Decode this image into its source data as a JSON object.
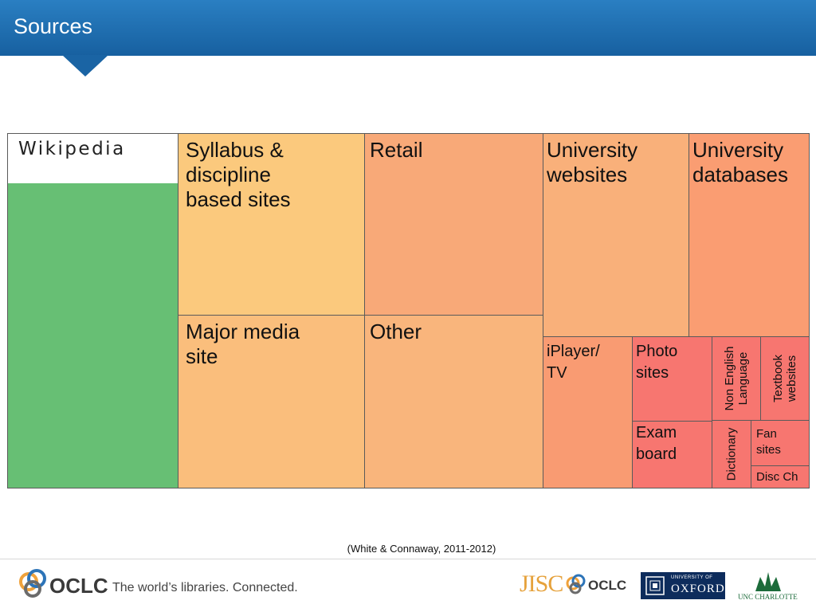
{
  "header": {
    "title": "Sources"
  },
  "treemap": {
    "wikipedia": "Wikipedia",
    "syllabus": "Syllabus &\ndiscipline\nbased sites",
    "retail": "Retail",
    "univ_websites": "University\nwebsites",
    "univ_databases": "University\ndatabases",
    "major_media": "Major media\nsite",
    "other": "Other",
    "iplayer": "iPlayer/\nTV",
    "photo": "Photo\nsites",
    "non_english": "Non English\nLanguage",
    "textbook": "Textbook\nwebsites",
    "exam": "Exam\nboard",
    "dictionary": "Dictionary",
    "fan": "Fan\nsites",
    "disc": "Disc Ch"
  },
  "colors": {
    "wikipedia": "#67bf74",
    "syllabus": "#fbc97d",
    "retail": "#f8a978",
    "univ_websites": "#f9b07a",
    "univ_databases": "#fa9d72",
    "major_media": "#fabe7c",
    "other": "#f9b57c",
    "iplayer": "#f99b72",
    "small_red": "#f77670"
  },
  "citation": "(White & Connaway, 2011-2012)",
  "footer": {
    "oclc": "OCLC",
    "tagline": "The world’s libraries. Connected.",
    "jisc": "JISC",
    "oclc2": "OCLC",
    "oxford_small": "UNIVERSITY OF",
    "oxford_big": "OXFORD",
    "uncc": "UNC CHARLOTTE"
  }
}
